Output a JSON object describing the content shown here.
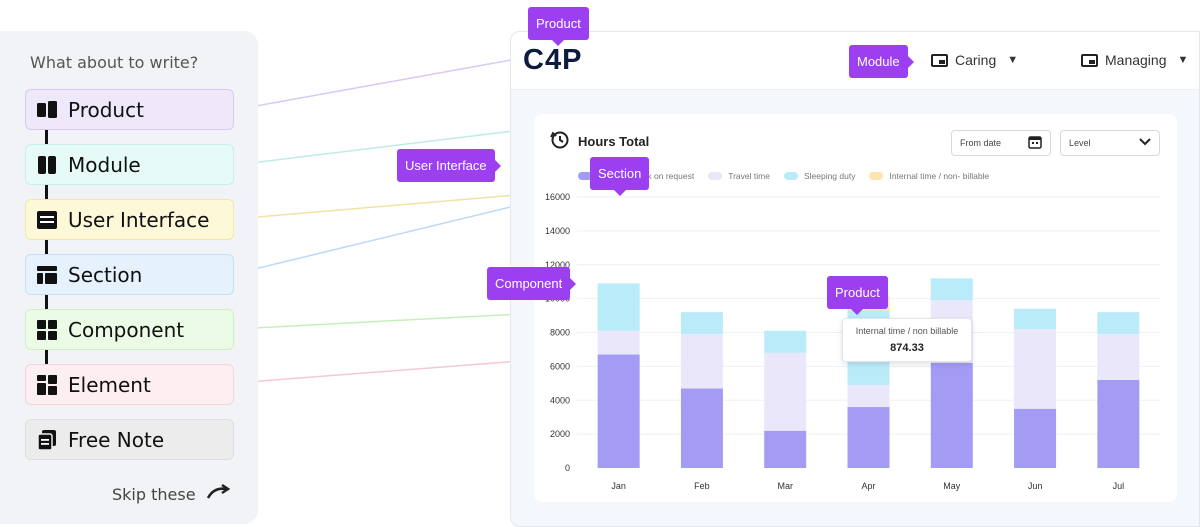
{
  "panel": {
    "prompt": "What about to write?",
    "items": [
      {
        "label": "Product",
        "bg": "#efe8fb",
        "border": "#d8c9f6",
        "icon": "product-icon"
      },
      {
        "label": "Module",
        "bg": "#e6fbf8",
        "border": "#c7f0ea",
        "icon": "module-icon"
      },
      {
        "label": "User Interface",
        "bg": "#fdf8d8",
        "border": "#f1e7a8",
        "icon": "user-interface-icon"
      },
      {
        "label": "Section",
        "bg": "#e5f1fd",
        "border": "#c6def8",
        "icon": "section-icon"
      },
      {
        "label": "Component",
        "bg": "#ebfbe5",
        "border": "#cdf0c1",
        "icon": "component-icon"
      },
      {
        "label": "Element",
        "bg": "#fdeef2",
        "border": "#f5d2dc",
        "icon": "element-icon"
      },
      {
        "label": "Free Note",
        "bg": "#ececec",
        "border": "#dedede",
        "icon": "free-note-icon"
      }
    ],
    "skip_label": "Skip these"
  },
  "app": {
    "logo": "C4P",
    "nav": [
      {
        "label": "Caring"
      },
      {
        "label": "Managing"
      }
    ],
    "card_title": "Hours Total",
    "from_date": "From date",
    "level": "Level",
    "tooltip": {
      "label": "Internal time / non billable",
      "value": "874.33"
    }
  },
  "callouts": {
    "product_top": "Product",
    "module": "Module",
    "user_interface": "User Interface",
    "section": "Section",
    "component": "Component",
    "product_chart": "Product"
  },
  "chart_data": {
    "type": "bar",
    "stacked": true,
    "categories": [
      "Jan",
      "Feb",
      "Mar",
      "Apr",
      "May",
      "Jun",
      "Jul"
    ],
    "ylim": [
      0,
      16000
    ],
    "yticks": [
      0,
      2000,
      4000,
      6000,
      8000,
      10000,
      12000,
      14000,
      16000
    ],
    "legend_position": "top",
    "series": [
      {
        "name": "",
        "color": "#a49bf4",
        "values": [
          6700,
          4700,
          2200,
          3600,
          6200,
          3500,
          5200
        ]
      },
      {
        "name": "Work on request",
        "color": "#b8e5fb",
        "values": [
          0,
          0,
          0,
          0,
          0,
          0,
          0
        ]
      },
      {
        "name": "Travel time",
        "color": "#ebe7fb",
        "values": [
          1400,
          3200,
          4600,
          1300,
          3700,
          4700,
          2700
        ]
      },
      {
        "name": "Sleeping duty",
        "color": "#b9ebf9",
        "values": [
          2800,
          1300,
          1300,
          4400,
          1300,
          1200,
          1300
        ]
      },
      {
        "name": "Internal time / non- billable",
        "color": "#fbe4b0",
        "values": [
          0,
          0,
          0,
          874,
          0,
          0,
          0
        ]
      }
    ]
  }
}
